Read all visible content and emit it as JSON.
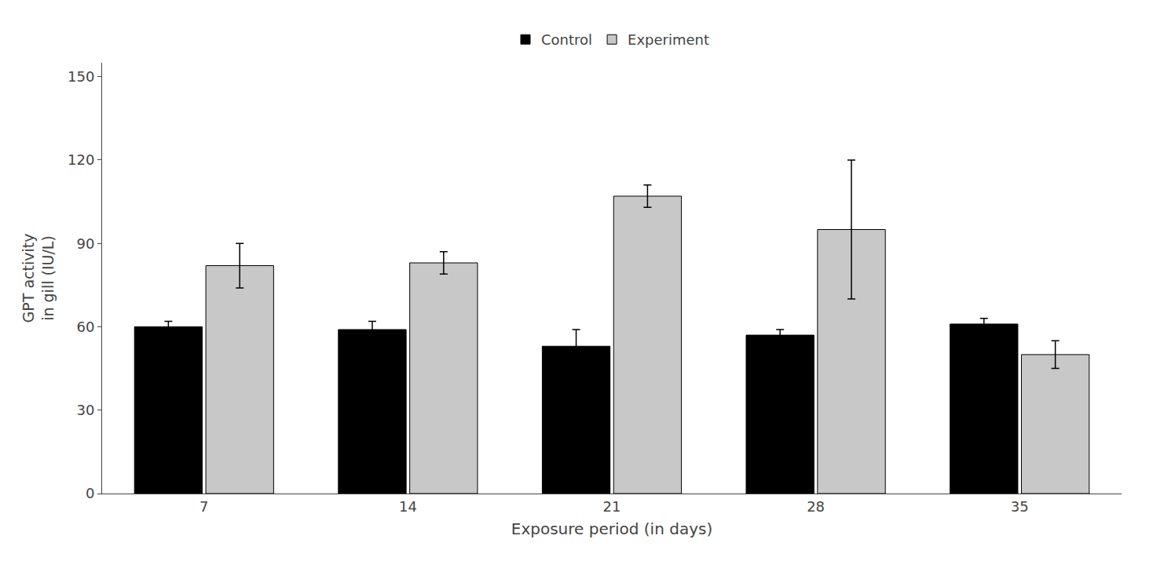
{
  "chart_data": {
    "type": "bar",
    "xlabel": "Exposure period (in days)",
    "ylabel": "GPT activity\nin gill (IU/L)",
    "categories": [
      "7",
      "14",
      "21",
      "28",
      "35"
    ],
    "series": [
      {
        "name": "Control",
        "color": "#000000",
        "values": [
          60,
          59,
          53,
          57,
          61
        ],
        "errors": [
          2,
          3,
          6,
          2,
          2
        ]
      },
      {
        "name": "Experiment",
        "color": "#c8c8c8",
        "values": [
          82,
          83,
          107,
          95,
          50
        ],
        "errors": [
          8,
          4,
          4,
          25,
          5
        ]
      }
    ],
    "ylim": [
      0,
      155
    ],
    "yticks": [
      0,
      30,
      60,
      90,
      120,
      150
    ],
    "grid": false,
    "legend": "top"
  }
}
